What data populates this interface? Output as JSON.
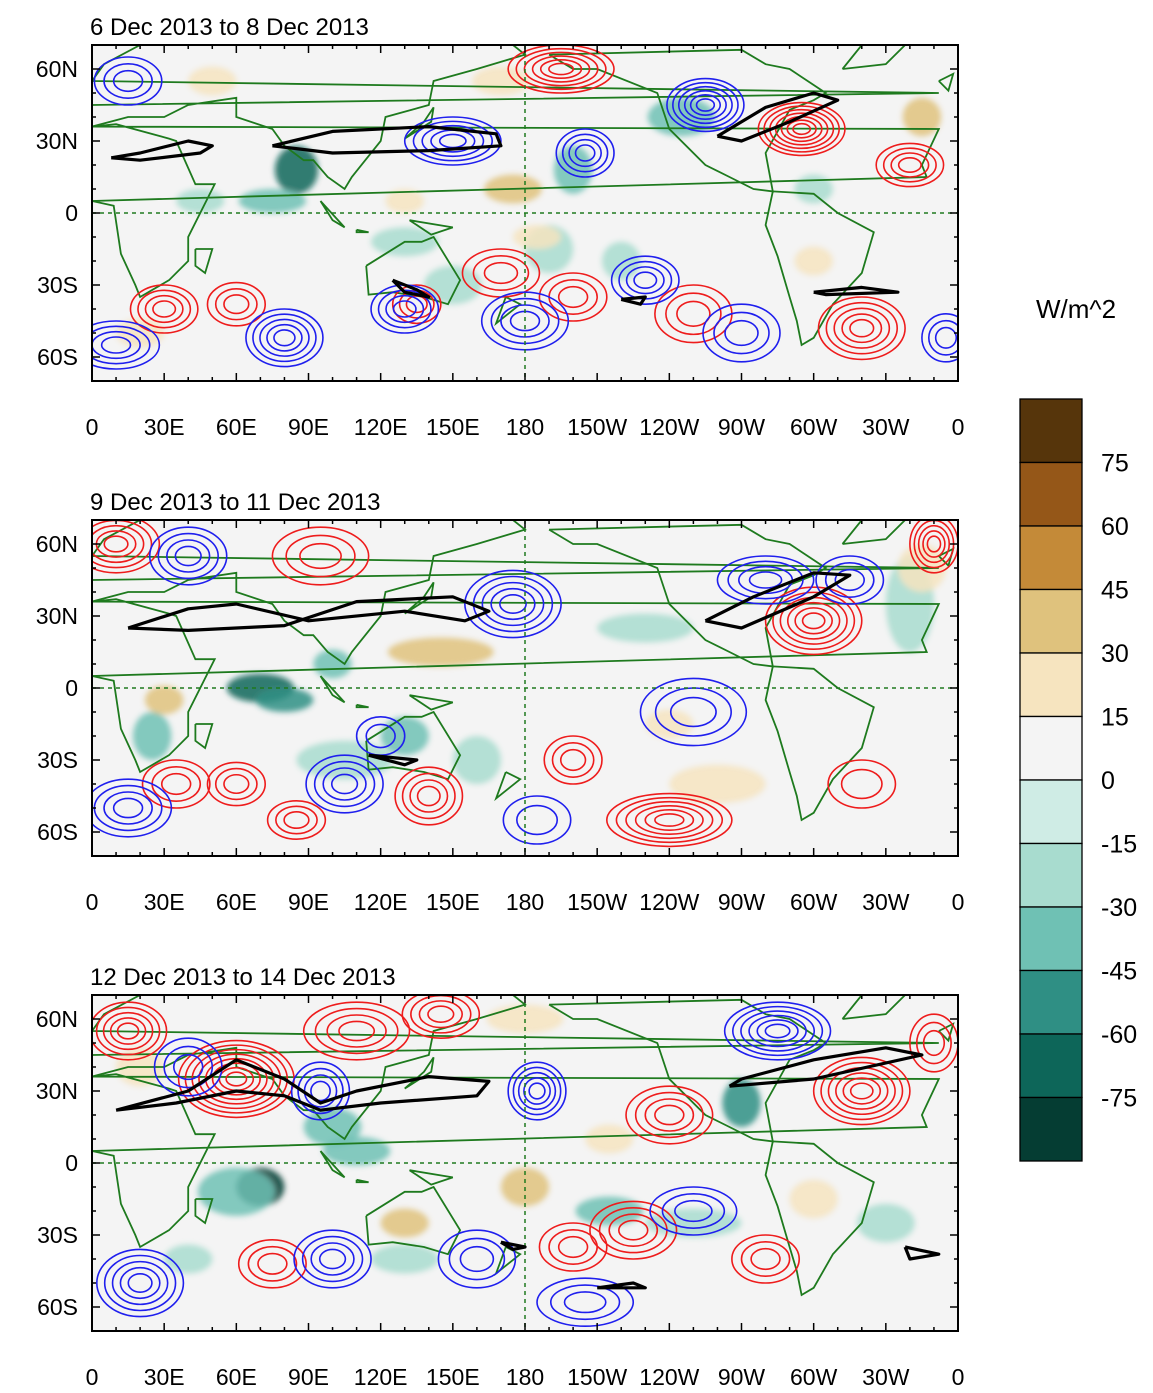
{
  "colors": {
    "positive_contour": "#ee1c1c",
    "negative_contour": "#1f1fee",
    "jet_contour": "#000000",
    "coastline": "#1e7a1e",
    "background": "#f4f4f4",
    "palette": [
      "#053d33",
      "#0d6659",
      "#2f8f84",
      "#6fc1b4",
      "#a8dccf",
      "#cfece5",
      "#f4f4f4",
      "#f4f4f4",
      "#f6e4bf",
      "#dfc27d",
      "#c48a38",
      "#955718",
      "#56350b"
    ]
  },
  "panels": [
    {
      "title": "6 Dec 2013 to 8 Dec 2013",
      "lat_labels": [
        "60N",
        "30N",
        "0",
        "30S",
        "60S"
      ],
      "lon_labels": [
        "0",
        "30E",
        "60E",
        "90E",
        "120E",
        "150E",
        "180",
        "150W",
        "120W",
        "90W",
        "60W",
        "30W",
        "0"
      ]
    },
    {
      "title": "9 Dec 2013 to 11 Dec 2013",
      "lat_labels": [
        "60N",
        "30N",
        "0",
        "30S",
        "60S"
      ],
      "lon_labels": [
        "0",
        "30E",
        "60E",
        "90E",
        "120E",
        "150E",
        "180",
        "150W",
        "120W",
        "90W",
        "60W",
        "30W",
        "0"
      ]
    },
    {
      "title": "12 Dec 2013 to 14 Dec 2013",
      "lat_labels": [
        "60N",
        "30N",
        "0",
        "30S",
        "60S"
      ],
      "lon_labels": [
        "0",
        "30E",
        "60E",
        "90E",
        "120E",
        "150E",
        "180",
        "150W",
        "120W",
        "90W",
        "60W",
        "30W",
        "0"
      ]
    }
  ],
  "colorbar": {
    "units": "W/m^2",
    "labels": [
      "75",
      "60",
      "45",
      "30",
      "15",
      "0",
      "-15",
      "-30",
      "-45",
      "-60",
      "-75"
    ]
  }
}
